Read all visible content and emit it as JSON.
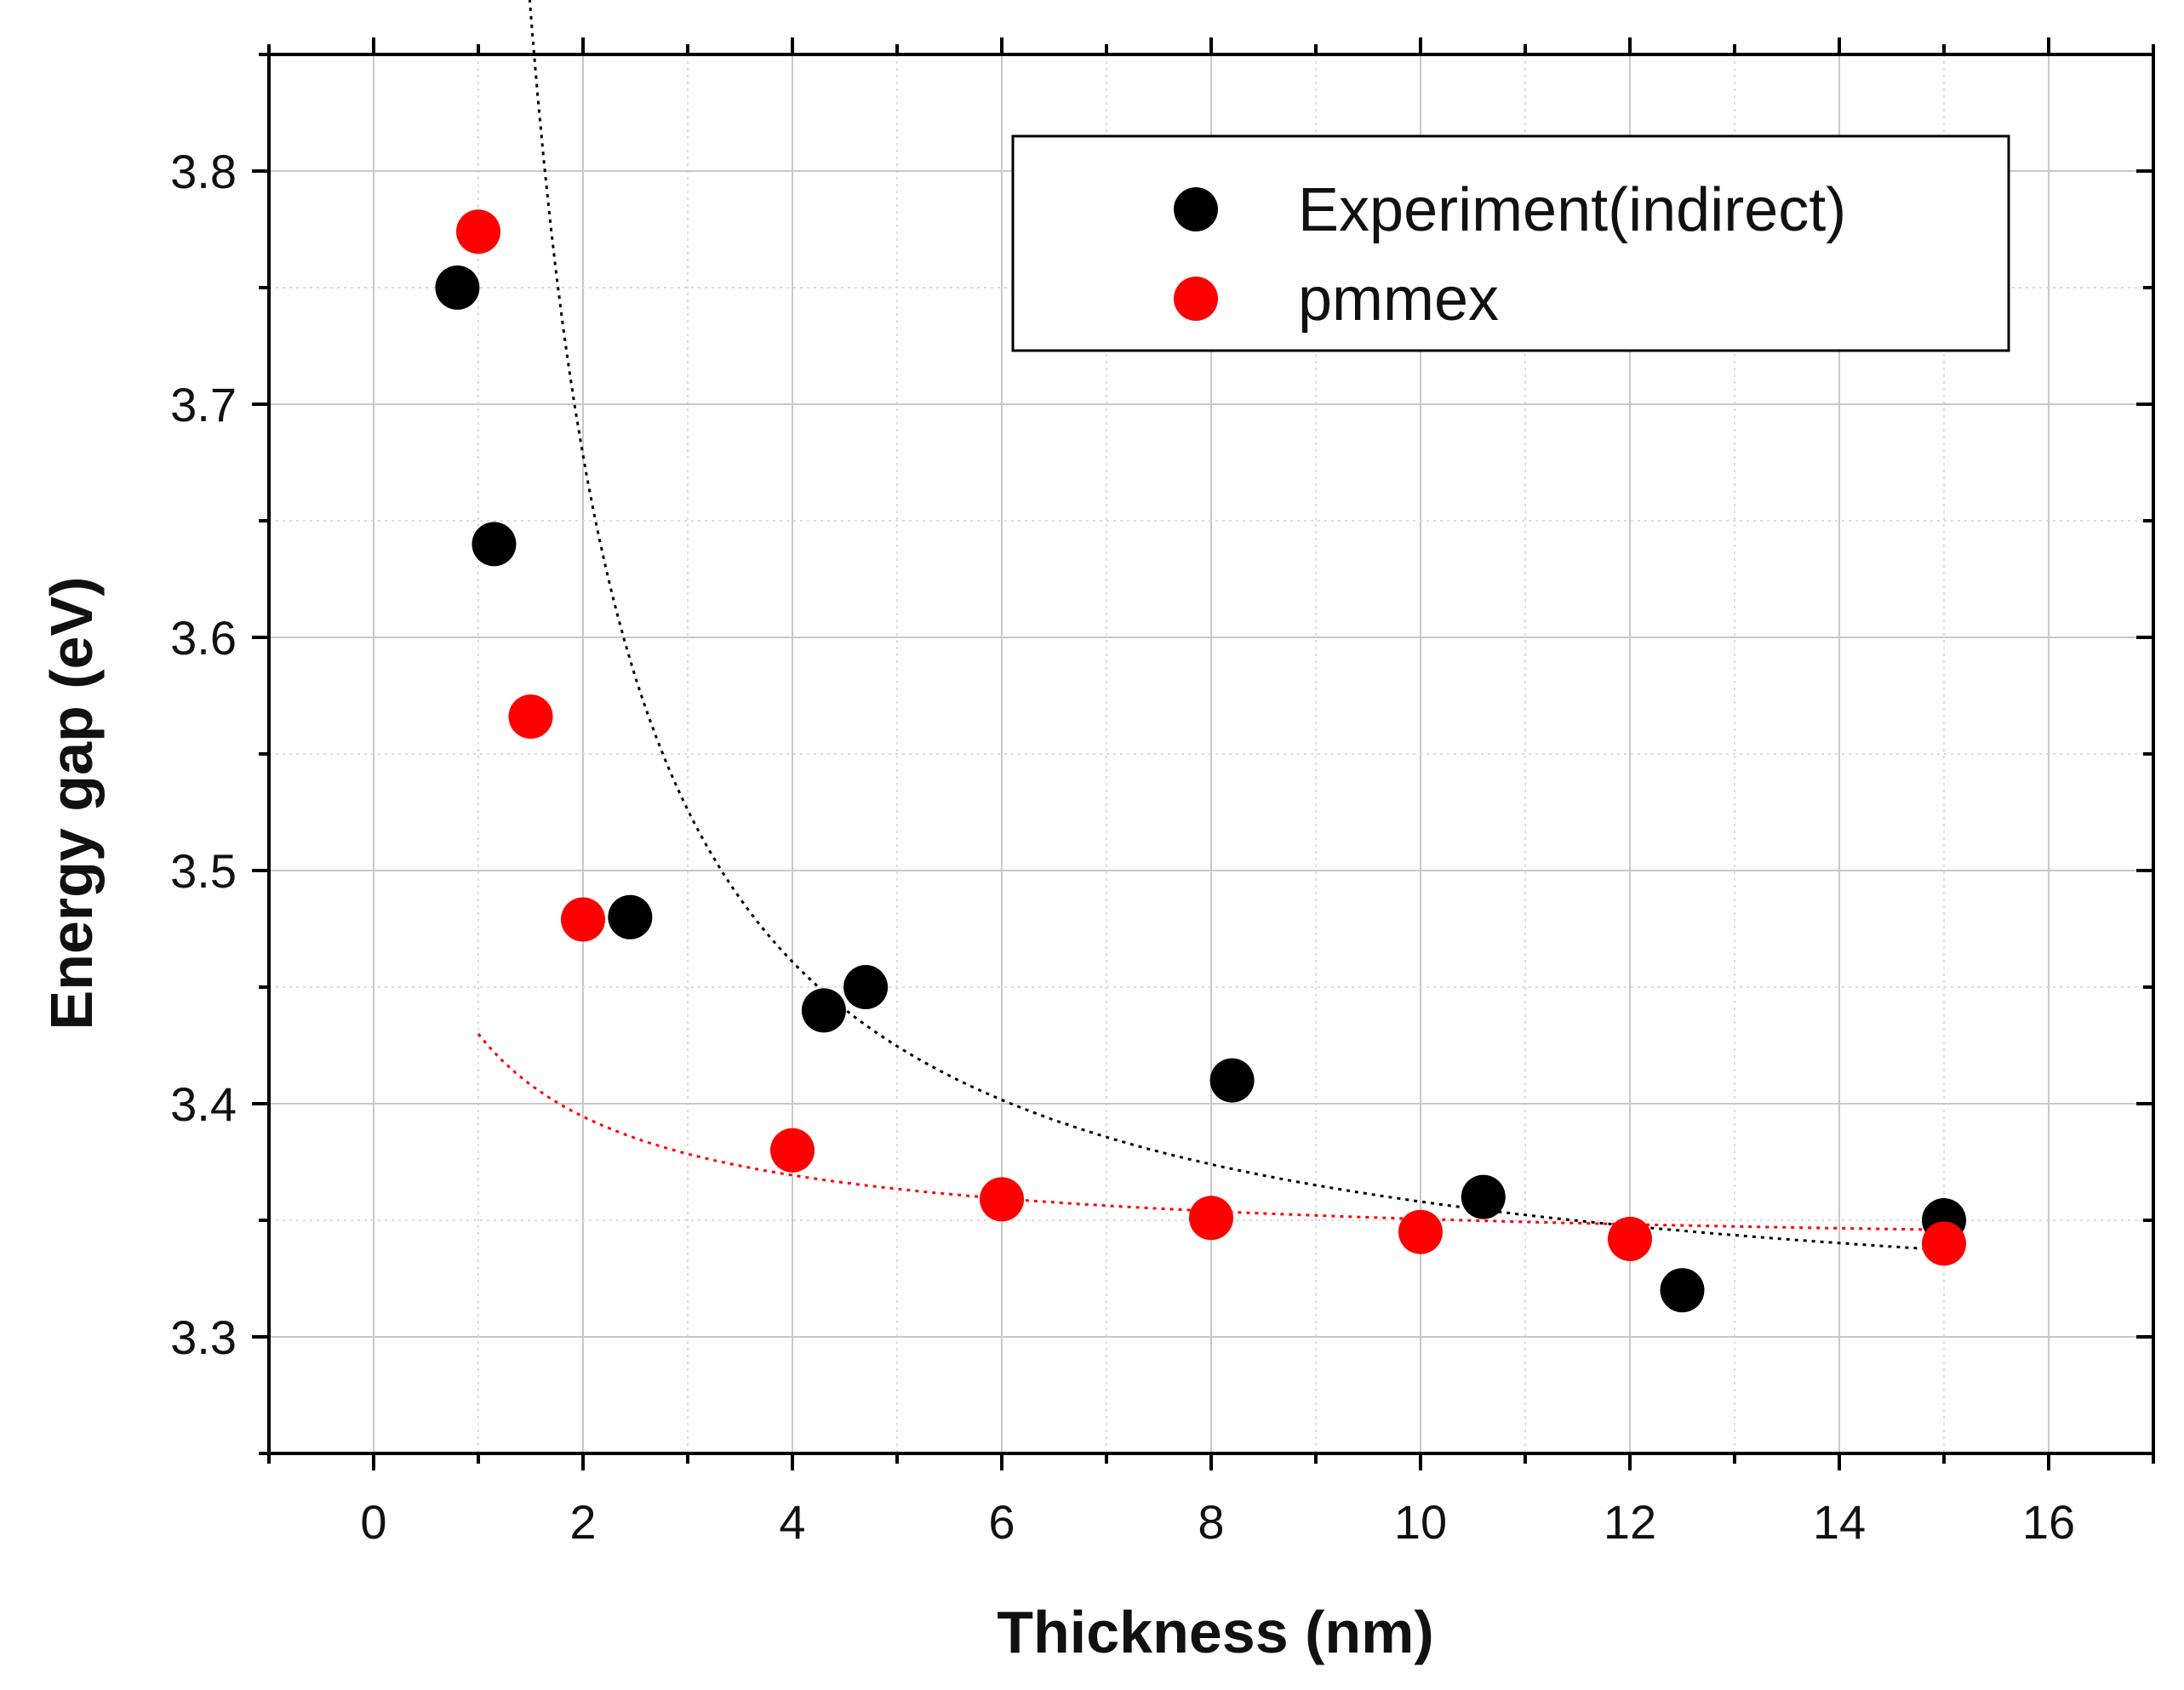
{
  "chart_data": {
    "type": "scatter",
    "title": "",
    "xlabel": "Thickness (nm)",
    "ylabel": "Energy gap (eV)",
    "xlim": [
      -1,
      17
    ],
    "ylim": [
      3.25,
      3.85
    ],
    "x_ticks": [
      0,
      2,
      4,
      6,
      8,
      10,
      12,
      14,
      16
    ],
    "x_tick_labels": [
      "0",
      "2",
      "4",
      "6",
      "8",
      "10",
      "12",
      "14",
      "16"
    ],
    "y_ticks": [
      3.3,
      3.4,
      3.5,
      3.6,
      3.7,
      3.8
    ],
    "y_tick_labels": [
      "3.3",
      "3.4",
      "3.5",
      "3.6",
      "3.7",
      "3.8"
    ],
    "grid": true,
    "legend_position": "top-right",
    "series": [
      {
        "name": "Experiment(indirect)",
        "color": "#000000",
        "x": [
          0.8,
          1.15,
          2.45,
          4.3,
          4.7,
          8.2,
          10.6,
          12.5,
          15.0
        ],
        "y": [
          3.75,
          3.64,
          3.48,
          3.44,
          3.45,
          3.41,
          3.36,
          3.32,
          3.35
        ],
        "fit": {
          "style": "dotted",
          "color": "#000000",
          "a": 3.298,
          "b": 0.57,
          "c": -0.5,
          "x_range": [
            0.8,
            15.0
          ]
        }
      },
      {
        "name": "pmmex",
        "color": "#ff0000",
        "x": [
          1.0,
          1.5,
          2.0,
          4.0,
          6.0,
          8.0,
          10.0,
          12.0,
          15.0
        ],
        "y": [
          3.774,
          3.566,
          3.479,
          3.38,
          3.359,
          3.351,
          3.345,
          3.342,
          3.34
        ],
        "fit": {
          "style": "dotted",
          "color": "#ff0000",
          "a": 3.336,
          "b": 0.155,
          "c": 0.65,
          "x_range": [
            1.0,
            15.0
          ]
        }
      }
    ]
  }
}
